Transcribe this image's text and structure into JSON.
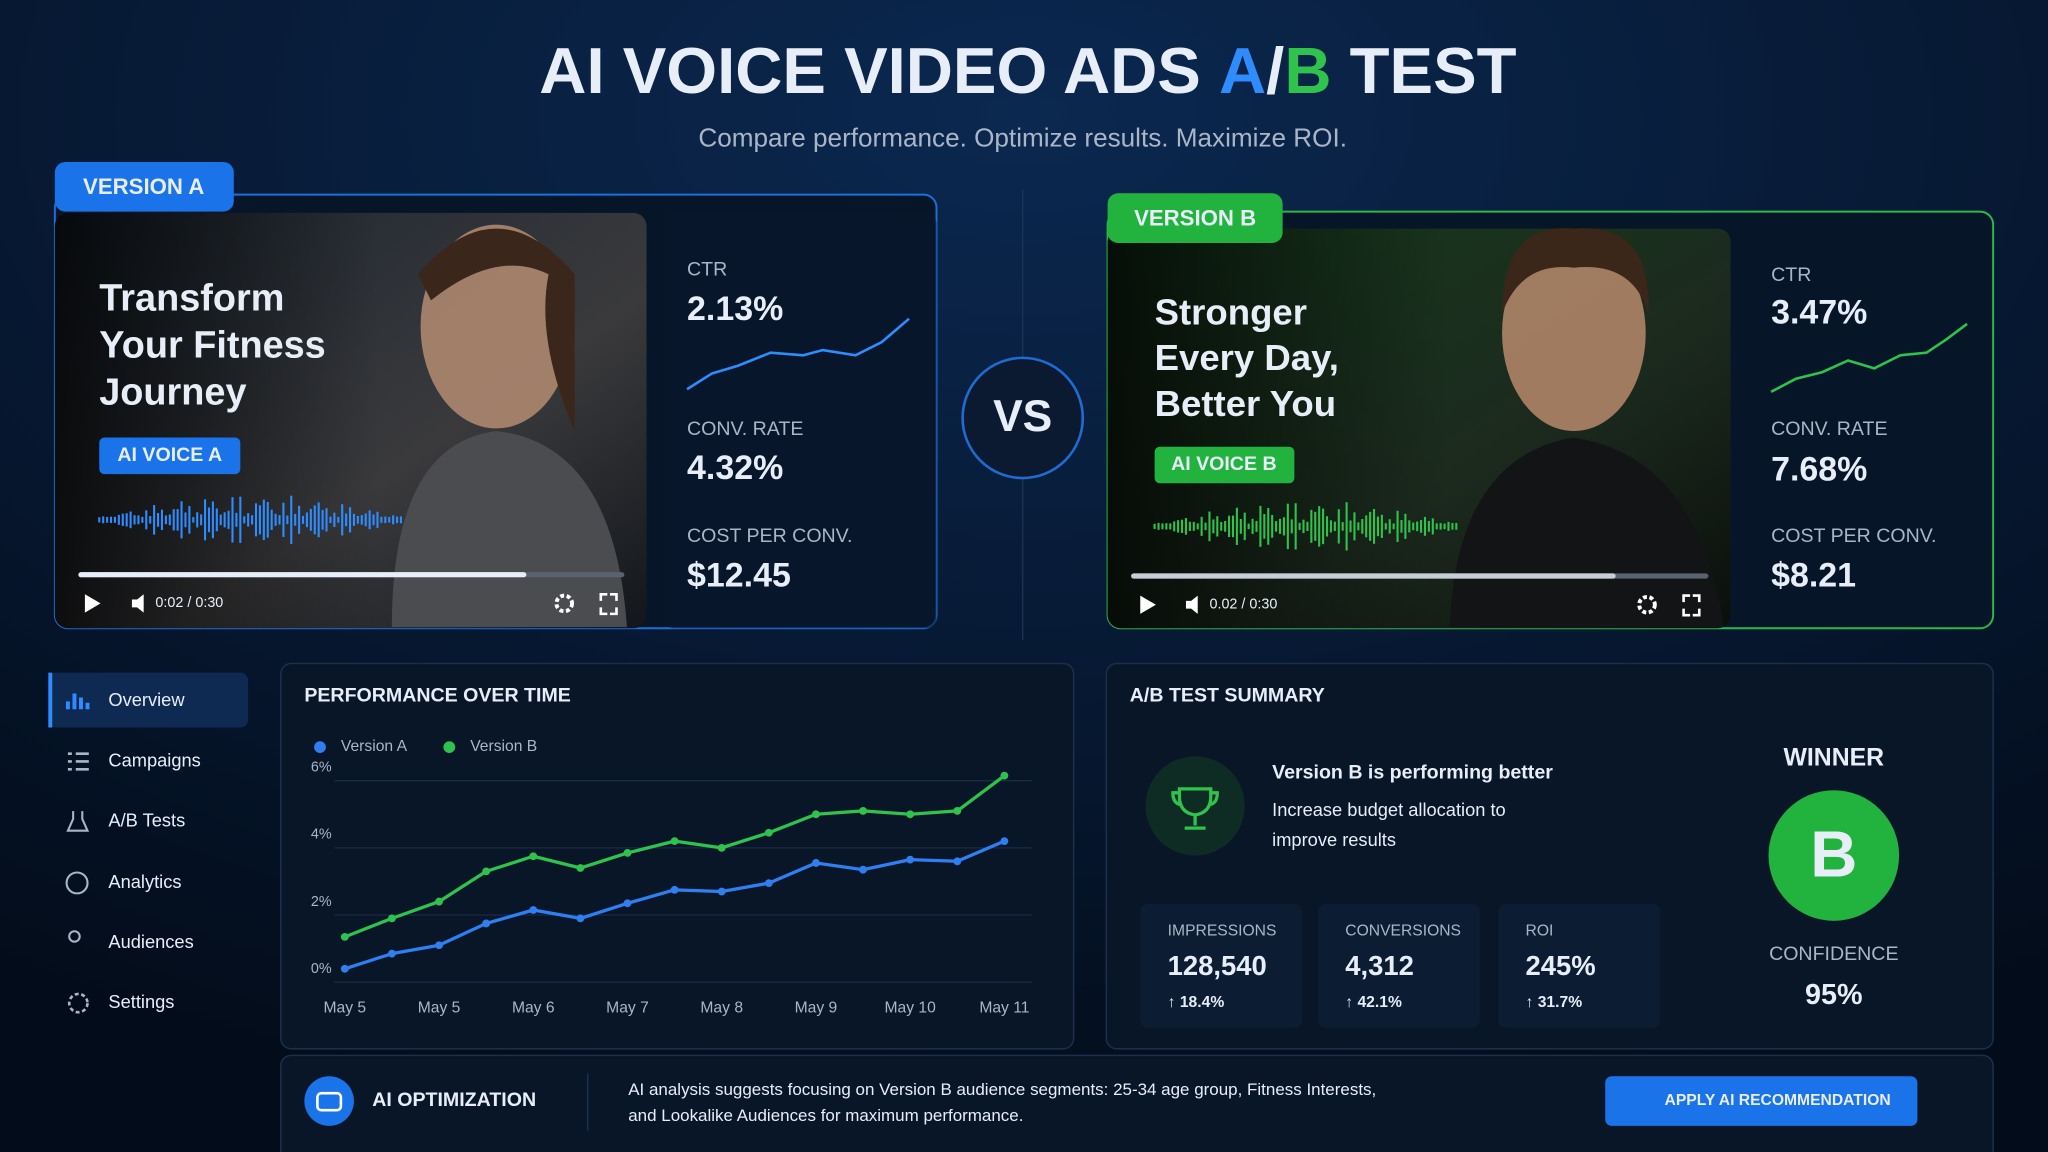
{
  "header": {
    "title_lead": "AI VOICE VIDEO ADS",
    "title_a": "A",
    "title_slash": "/",
    "title_b": "B",
    "title_tail": "TEST",
    "subtitle": "Compare performance. Optimize results. Maximize ROI."
  },
  "versions": [
    {
      "label": "VERSION A",
      "headline": [
        "Transform",
        "Your Fitness",
        "Journey"
      ],
      "voice": "AI VOICE A",
      "time": "0:02 / 0:30",
      "metrics": [
        {
          "label": "CTR",
          "value": "2.13%"
        },
        {
          "label": "CONV. RATE",
          "value": "4.32%"
        },
        {
          "label": "COST PER CONV.",
          "value": "$12.45"
        }
      ]
    },
    {
      "label": "VERSION B",
      "headline": [
        "Stronger",
        "Every Day,",
        "Better You"
      ],
      "voice": "AI VOICE B",
      "time": "0.02 / 0:30",
      "metrics": [
        {
          "label": "CTR",
          "value": "3.47%"
        },
        {
          "label": "CONV. RATE",
          "value": "7.68%"
        },
        {
          "label": "COST PER CONV.",
          "value": "$8.21"
        }
      ]
    }
  ],
  "vs": "VS",
  "nav": [
    "Overview",
    "Campaigns",
    "A/B Tests",
    "Analytics",
    "Audiences",
    "Settings"
  ],
  "chart_data": {
    "type": "line",
    "title": "PERFORMANCE OVER TIME",
    "categories": [
      "May 5",
      null,
      "May 5",
      null,
      "May 6",
      null,
      "May 7",
      null,
      "May 8",
      null,
      "May 9",
      null,
      "May 10",
      null,
      "May 11"
    ],
    "series": [
      {
        "name": "Version A",
        "color": "#2f7ff0",
        "values": [
          0.4,
          0.85,
          1.1,
          1.75,
          2.15,
          1.9,
          2.35,
          2.75,
          2.7,
          2.95,
          3.55,
          3.35,
          3.65,
          3.6,
          4.2
        ]
      },
      {
        "name": "Version B",
        "color": "#2fc24c",
        "values": [
          1.35,
          1.9,
          2.4,
          3.3,
          3.75,
          3.4,
          3.85,
          4.2,
          4.0,
          4.45,
          5.0,
          5.1,
          5.0,
          5.1,
          6.15
        ]
      }
    ],
    "ylim": [
      0,
      6.3
    ],
    "yticks": [
      {
        "value": 0,
        "label": "0%"
      },
      {
        "value": 2,
        "label": "2%"
      },
      {
        "value": 4,
        "label": "4%"
      },
      {
        "value": 6,
        "label": "6%"
      }
    ],
    "grid": true
  },
  "summary": {
    "title": "A/B TEST SUMMARY",
    "headline": "Version B is performing better",
    "body": [
      "Increase budget allocation to",
      "improve results"
    ],
    "stats": [
      {
        "label": "IMPRESSIONS",
        "value": "128,540",
        "change": "↑ 18.4%"
      },
      {
        "label": "CONVERSIONS",
        "value": "4,312",
        "change": "↑ 42.1%"
      },
      {
        "label": "ROI",
        "value": "245%",
        "change": "↑ 31.7%"
      }
    ],
    "winner_label": "WINNER",
    "winner": "B",
    "confidence_label": "CONFIDENCE",
    "confidence": "95%"
  },
  "ai": {
    "title": "AI OPTIMIZATION",
    "text": [
      "AI analysis suggests focusing on Version B audience segments: 25-34 age group, Fitness Interests,",
      "and Lookalike Audiences for maximum performance."
    ],
    "button": "APPLY AI RECOMMENDATION"
  }
}
